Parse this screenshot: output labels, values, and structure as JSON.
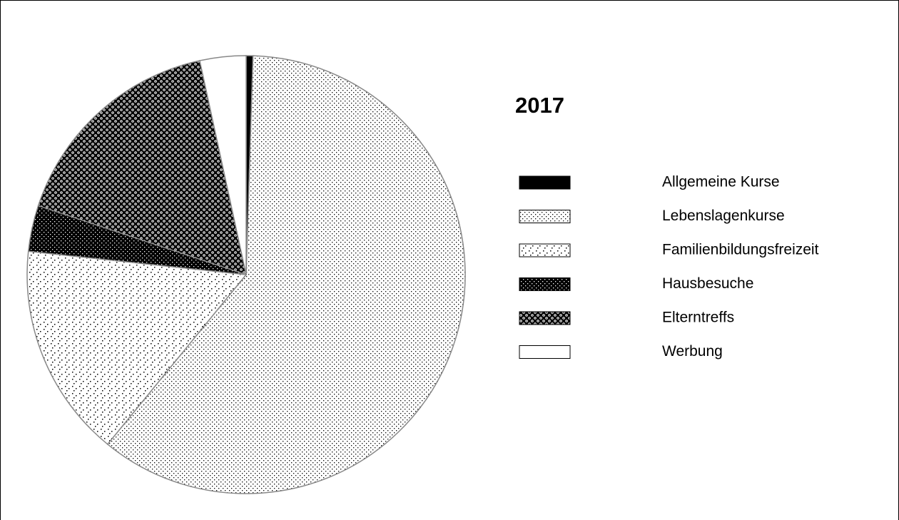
{
  "chart_data": {
    "type": "pie",
    "title": "2017",
    "categories": [
      "Allgemeine Kurse",
      "Lebenslagenkurse",
      "Familienbildungsfreizeit",
      "Hausbesuche",
      "Elterntreffs",
      "Werbung"
    ],
    "values": [
      0.5,
      60.4,
      15.8,
      3.4,
      16.5,
      3.4
    ],
    "colors": [
      "#000000",
      "url(#p-fine)",
      "url(#p-sparse)",
      "url(#p-dark)",
      "url(#p-checker)",
      "#ffffff"
    ]
  }
}
